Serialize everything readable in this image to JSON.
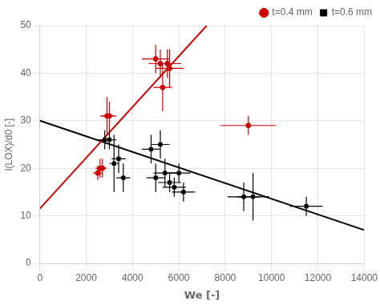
{
  "chart_data": {
    "type": "scatter",
    "xlabel": "We [-]",
    "ylabel": "l(LOX)/d0 [-]",
    "xlim": [
      0,
      14000
    ],
    "ylim": [
      0,
      50
    ],
    "xticks": [
      0,
      2000,
      4000,
      6000,
      8000,
      10000,
      12000,
      14000
    ],
    "yticks": [
      0,
      10,
      20,
      30,
      40,
      50
    ],
    "grid": true,
    "legend": "upper right",
    "series": [
      {
        "name": "t=0.4 mm",
        "color": "#cc0000",
        "marker": "circle",
        "x": [
          2500,
          2600,
          2700,
          2900,
          3000,
          5000,
          5200,
          5300,
          5500,
          5600,
          9000
        ],
        "values": [
          19,
          20,
          20,
          31,
          31,
          43,
          42,
          37,
          42,
          41,
          29
        ],
        "xerr": [
          200,
          200,
          200,
          300,
          300,
          600,
          500,
          400,
          600,
          600,
          1200
        ],
        "yerr": [
          1.5,
          2,
          2,
          4,
          3,
          3,
          3,
          5,
          3,
          4,
          2
        ]
      },
      {
        "name": "t=0.6 mm",
        "color": "#000000",
        "marker": "square",
        "x": [
          2800,
          3000,
          3200,
          3400,
          3600,
          4800,
          5000,
          5200,
          5400,
          5600,
          5800,
          6000,
          6200,
          8800,
          9200,
          11500
        ],
        "values": [
          26,
          26,
          21,
          22,
          18,
          24,
          18,
          25,
          19,
          17,
          16,
          19,
          15,
          14,
          14,
          12
        ],
        "xerr": [
          300,
          300,
          200,
          300,
          300,
          400,
          400,
          400,
          500,
          500,
          500,
          500,
          500,
          700,
          700,
          700
        ],
        "yerr": [
          2,
          2,
          6,
          3,
          3,
          3,
          3,
          3,
          3,
          2,
          2,
          2,
          2,
          3,
          5,
          2
        ]
      },
      {
        "type": "line",
        "color": "#cc0000",
        "x": [
          0,
          7200
        ],
        "values": [
          11.5,
          50
        ]
      },
      {
        "type": "line",
        "color": "#000000",
        "x": [
          0,
          14000
        ],
        "values": [
          30,
          7
        ]
      }
    ]
  }
}
